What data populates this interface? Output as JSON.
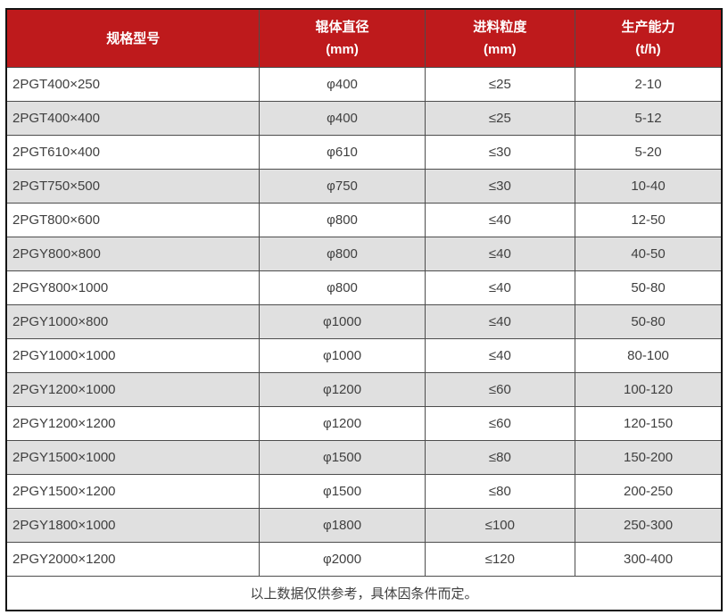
{
  "colors": {
    "page_bg": "#ffffff",
    "header_bg": "#be1a1c",
    "header_text": "#ffffff",
    "row_bg": "#ffffff",
    "row_alt_bg": "#e0e0e0",
    "border_outer": "#141414",
    "border_inner": "#4d4d4d",
    "cell_text": "#404040"
  },
  "table": {
    "columns": [
      {
        "key": "model",
        "label": "规格型号",
        "unit": ""
      },
      {
        "key": "roller-diameter",
        "label": "辊体直径",
        "unit": "(mm)"
      },
      {
        "key": "feed-size",
        "label": "进料粒度",
        "unit": "(mm)"
      },
      {
        "key": "capacity",
        "label": "生产能力",
        "unit": "(t/h)"
      }
    ],
    "rows": [
      [
        "2PGT400×250",
        "φ400",
        "≤25",
        "2-10"
      ],
      [
        "2PGT400×400",
        "φ400",
        "≤25",
        "5-12"
      ],
      [
        "2PGT610×400",
        "φ610",
        "≤30",
        "5-20"
      ],
      [
        "2PGT750×500",
        "φ750",
        "≤30",
        "10-40"
      ],
      [
        "2PGT800×600",
        "φ800",
        "≤40",
        "12-50"
      ],
      [
        "2PGY800×800",
        "φ800",
        "≤40",
        "40-50"
      ],
      [
        "2PGY800×1000",
        "φ800",
        "≤40",
        "50-80"
      ],
      [
        "2PGY1000×800",
        "φ1000",
        "≤40",
        "50-80"
      ],
      [
        "2PGY1000×1000",
        "φ1000",
        "≤40",
        "80-100"
      ],
      [
        "2PGY1200×1000",
        "φ1200",
        "≤60",
        "100-120"
      ],
      [
        "2PGY1200×1200",
        "φ1200",
        "≤60",
        "120-150"
      ],
      [
        "2PGY1500×1000",
        "φ1500",
        "≤80",
        "150-200"
      ],
      [
        "2PGY1500×1200",
        "φ1500",
        "≤80",
        "200-250"
      ],
      [
        "2PGY1800×1000",
        "φ1800",
        "≤100",
        "250-300"
      ],
      [
        "2PGY2000×1200",
        "φ2000",
        "≤120",
        "300-400"
      ]
    ],
    "footer_note": "以上数据仅供参考，具体因条件而定。"
  }
}
